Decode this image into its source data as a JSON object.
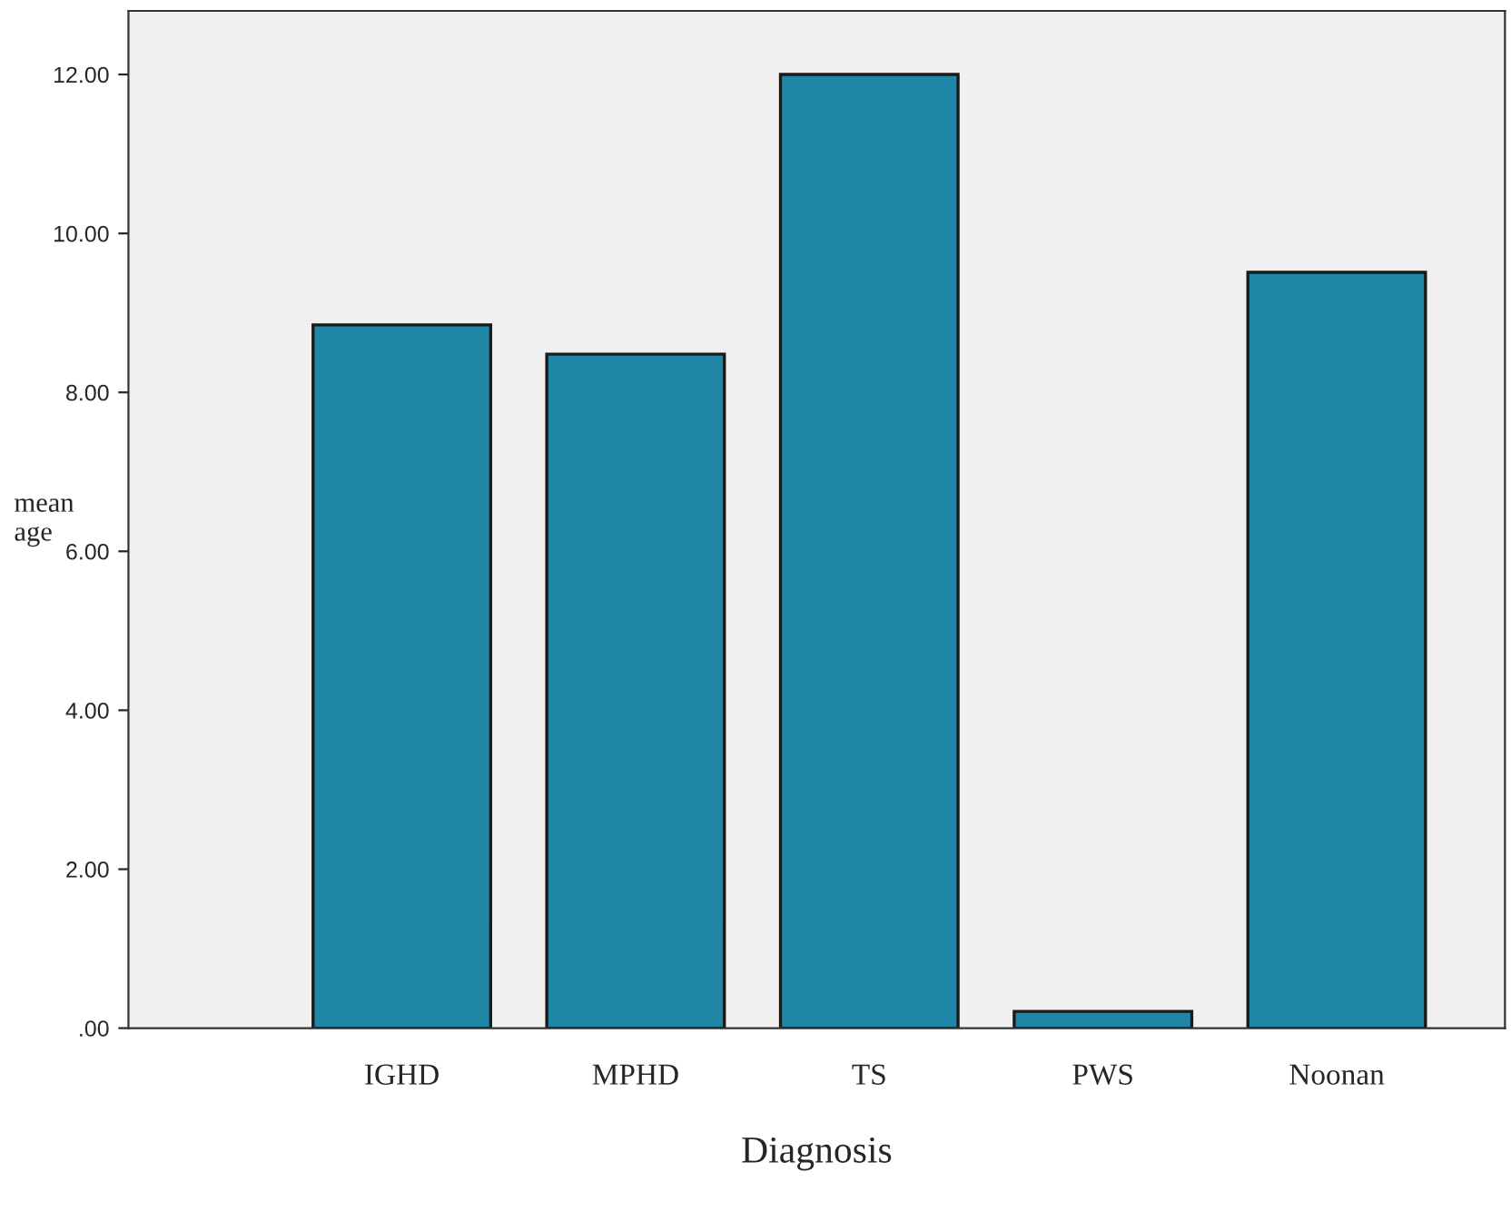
{
  "chart_data": {
    "type": "bar",
    "xlabel": "Diagnosis",
    "ylabel": "mean\nage",
    "categories": [
      "IGHD",
      "MPHD",
      "TS",
      "PWS",
      "Noonan"
    ],
    "values": [
      8.85,
      8.48,
      12.0,
      0.21,
      9.51
    ],
    "color": "#1f87a5",
    "ylim": [
      0,
      12.8
    ],
    "yticks": [
      {
        "value": 0,
        "label": ".00"
      },
      {
        "value": 2,
        "label": "2.00"
      },
      {
        "value": 4,
        "label": "4.00"
      },
      {
        "value": 6,
        "label": "6.00"
      },
      {
        "value": 8,
        "label": "8.00"
      },
      {
        "value": 10,
        "label": "10.00"
      },
      {
        "value": 12,
        "label": "12.00"
      }
    ],
    "grid": false,
    "legend": false
  }
}
